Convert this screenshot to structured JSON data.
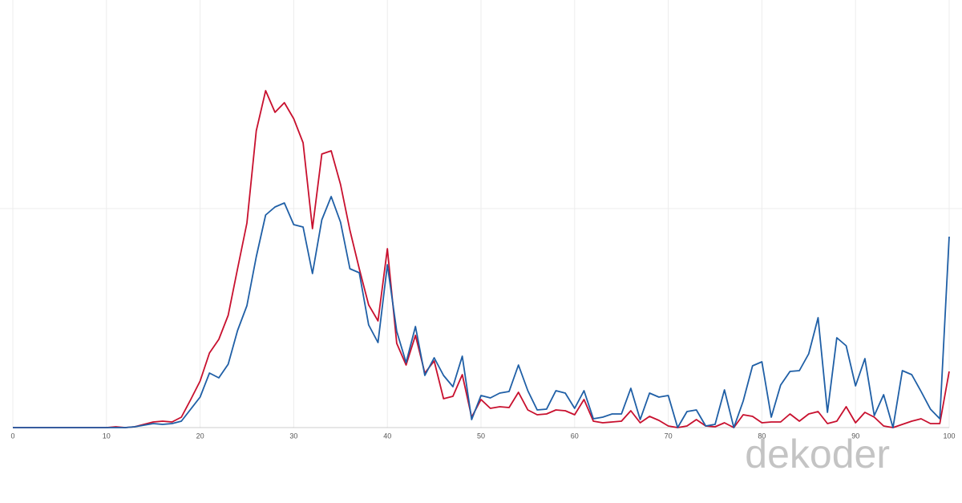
{
  "chart_data": {
    "type": "line",
    "x": [
      0,
      1,
      2,
      3,
      4,
      5,
      6,
      7,
      8,
      9,
      10,
      11,
      12,
      13,
      14,
      15,
      16,
      17,
      18,
      19,
      20,
      21,
      22,
      23,
      24,
      25,
      26,
      27,
      28,
      29,
      30,
      31,
      32,
      33,
      34,
      35,
      36,
      37,
      38,
      39,
      40,
      41,
      42,
      43,
      44,
      45,
      46,
      47,
      48,
      49,
      50,
      51,
      52,
      53,
      54,
      55,
      56,
      57,
      58,
      59,
      60,
      61,
      62,
      63,
      64,
      65,
      66,
      67,
      68,
      69,
      70,
      71,
      72,
      73,
      74,
      75,
      76,
      77,
      78,
      79,
      80,
      81,
      82,
      83,
      84,
      85,
      86,
      87,
      88,
      89,
      90,
      91,
      92,
      93,
      94,
      95,
      96,
      97,
      98,
      99,
      100
    ],
    "series": [
      {
        "name": "red",
        "color": "#c8102e",
        "values": [
          0,
          0,
          0,
          0,
          0,
          0,
          0,
          0,
          0,
          0,
          0,
          1,
          0,
          1,
          4,
          7,
          8,
          7,
          13,
          35,
          58,
          93,
          110,
          140,
          198,
          255,
          370,
          420,
          393,
          405,
          385,
          355,
          248,
          341,
          345,
          303,
          246,
          198,
          153,
          133,
          223,
          105,
          78,
          115,
          68,
          83,
          36,
          39,
          66,
          13,
          35,
          24,
          26,
          25,
          44,
          22,
          16,
          17,
          22,
          21,
          16,
          35,
          8,
          6,
          7,
          8,
          21,
          6,
          14,
          9,
          2,
          0,
          2,
          10,
          2,
          1,
          6,
          0,
          16,
          14,
          6,
          7,
          7,
          17,
          8,
          17,
          20,
          5,
          8,
          26,
          6,
          19,
          13,
          2,
          0,
          4,
          8,
          11,
          5,
          5,
          70
        ]
      },
      {
        "name": "blue",
        "color": "#1f5fa6",
        "values": [
          0,
          0,
          0,
          0,
          0,
          0,
          0,
          0,
          0,
          0,
          0,
          0,
          0,
          1,
          3,
          5,
          4,
          5,
          8,
          23,
          38,
          68,
          62,
          79,
          121,
          152,
          213,
          265,
          275,
          280,
          253,
          250,
          192,
          259,
          288,
          256,
          198,
          193,
          128,
          106,
          203,
          120,
          81,
          126,
          65,
          87,
          65,
          51,
          89,
          10,
          40,
          37,
          43,
          45,
          78,
          46,
          22,
          23,
          46,
          43,
          24,
          46,
          11,
          13,
          17,
          17,
          49,
          10,
          43,
          38,
          40,
          0,
          20,
          22,
          2,
          4,
          47,
          0,
          33,
          77,
          82,
          13,
          53,
          70,
          71,
          92,
          137,
          19,
          112,
          102,
          52,
          86,
          15,
          41,
          0,
          71,
          66,
          45,
          23,
          11,
          238
        ]
      }
    ],
    "xlim": [
      0,
      100
    ],
    "xticks": [
      0,
      10,
      20,
      30,
      40,
      50,
      60,
      70,
      80,
      90,
      100
    ],
    "ylim": [
      0,
      533
    ],
    "ygrid": [
      273
    ],
    "grid": true,
    "watermark": "dekoder"
  }
}
